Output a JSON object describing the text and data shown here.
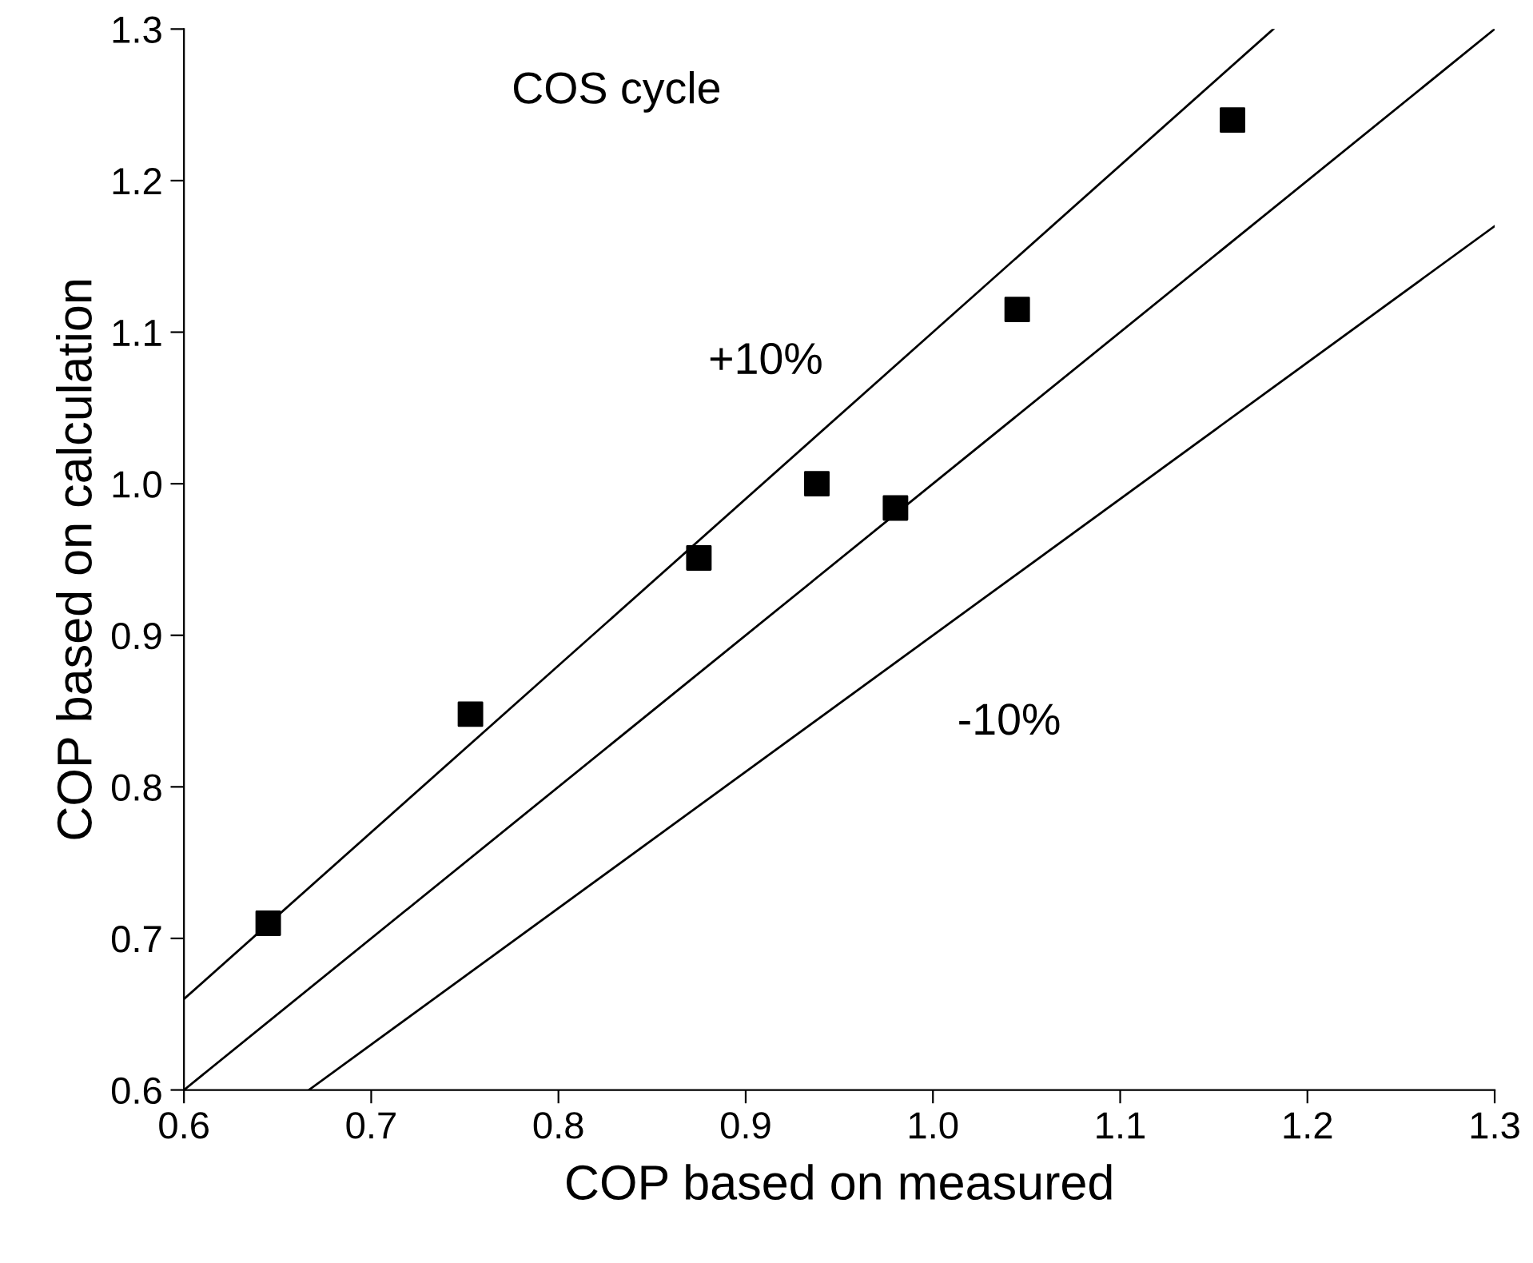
{
  "chart_data": {
    "type": "scatter",
    "xlabel": "COP based on measured",
    "ylabel": "COP based on calculation",
    "xlim": [
      0.6,
      1.3
    ],
    "ylim": [
      0.6,
      1.3
    ],
    "xticks": [
      {
        "value": 0.6,
        "label": "0.6"
      },
      {
        "value": 0.7,
        "label": "0.7"
      },
      {
        "value": 0.8,
        "label": "0.8"
      },
      {
        "value": 0.9,
        "label": "0.9"
      },
      {
        "value": 1.0,
        "label": "1.0"
      },
      {
        "value": 1.1,
        "label": "1.1"
      },
      {
        "value": 1.2,
        "label": "1.2"
      },
      {
        "value": 1.3,
        "label": "1.3"
      }
    ],
    "yticks": [
      {
        "value": 0.6,
        "label": "0.6"
      },
      {
        "value": 0.7,
        "label": "0.7"
      },
      {
        "value": 0.8,
        "label": "0.8"
      },
      {
        "value": 0.9,
        "label": "0.9"
      },
      {
        "value": 1.0,
        "label": "1.0"
      },
      {
        "value": 1.1,
        "label": "1.1"
      },
      {
        "value": 1.2,
        "label": "1.2"
      },
      {
        "value": 1.3,
        "label": "1.3"
      }
    ],
    "grid": false,
    "legend": false,
    "series": [
      {
        "color": "#000000",
        "marker": "square",
        "x": [
          0.645,
          0.753,
          0.875,
          0.938,
          0.98,
          1.045,
          1.16
        ],
        "values": [
          0.71,
          0.848,
          0.951,
          1.0,
          0.984,
          1.115,
          1.24
        ]
      },
      {
        "type": "line",
        "color": "#000000",
        "marker": "none",
        "line_style": "solid",
        "x": [
          0.6,
          1.3
        ],
        "values": [
          0.6,
          1.3
        ]
      },
      {
        "type": "line",
        "color": "#000000",
        "marker": "none",
        "line_style": "solid",
        "x": [
          0.6,
          1.1818
        ],
        "values": [
          0.66,
          1.3
        ]
      },
      {
        "type": "line",
        "color": "#000000",
        "marker": "none",
        "line_style": "solid",
        "x": [
          0.6667,
          1.3
        ],
        "values": [
          0.6,
          1.17
        ]
      }
    ],
    "annotations": [
      "COS cycle",
      "+10%",
      "-10%"
    ]
  }
}
